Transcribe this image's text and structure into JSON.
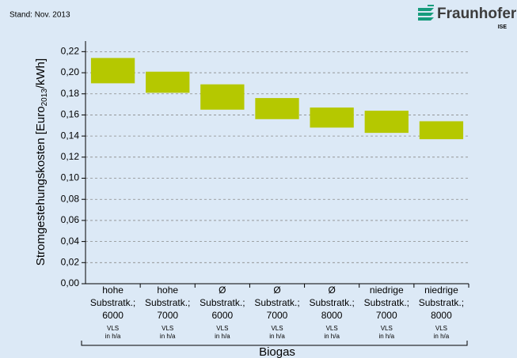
{
  "header": {
    "stand": "Stand: Nov. 2013",
    "logo": "Fraunhofer",
    "logo_sub": "ISE"
  },
  "chart_data": {
    "type": "bar",
    "ylabel": {
      "text": "Stromgestehungskosten [Euro",
      "sub": "2013",
      "end": "/kWh]"
    },
    "categories": [
      [
        "hohe",
        "Substratk.;",
        "6000"
      ],
      [
        "hohe",
        "Substratk.;",
        "7000"
      ],
      [
        "Ø",
        "Substratk.;",
        "6000"
      ],
      [
        "Ø",
        "Substratk.;",
        "7000"
      ],
      [
        "Ø",
        "Substratk.;",
        "8000"
      ],
      [
        "niedrige",
        "Substratk.;",
        "7000"
      ],
      [
        "niedrige",
        "Substratk.;",
        "8000"
      ]
    ],
    "category_sublabel": [
      "VLS",
      "in h/a"
    ],
    "group_label": "Biogas",
    "low": [
      0.19,
      0.181,
      0.165,
      0.156,
      0.148,
      0.143,
      0.137
    ],
    "high": [
      0.214,
      0.201,
      0.189,
      0.176,
      0.167,
      0.164,
      0.154
    ],
    "color": "#b5c800",
    "ylim": [
      0,
      0.23
    ],
    "yticks": [
      {
        "value": 0,
        "label": "0,00"
      },
      {
        "value": 0.02,
        "label": "0,02"
      },
      {
        "value": 0.04,
        "label": "0,04"
      },
      {
        "value": 0.06,
        "label": "0,06"
      },
      {
        "value": 0.08,
        "label": "0,08"
      },
      {
        "value": 0.1,
        "label": "0,10"
      },
      {
        "value": 0.12,
        "label": "0,12"
      },
      {
        "value": 0.14,
        "label": "0,14"
      },
      {
        "value": 0.16,
        "label": "0,16"
      },
      {
        "value": 0.18,
        "label": "0,18"
      },
      {
        "value": 0.2,
        "label": "0,20"
      },
      {
        "value": 0.22,
        "label": "0,22"
      }
    ],
    "grid": true
  }
}
